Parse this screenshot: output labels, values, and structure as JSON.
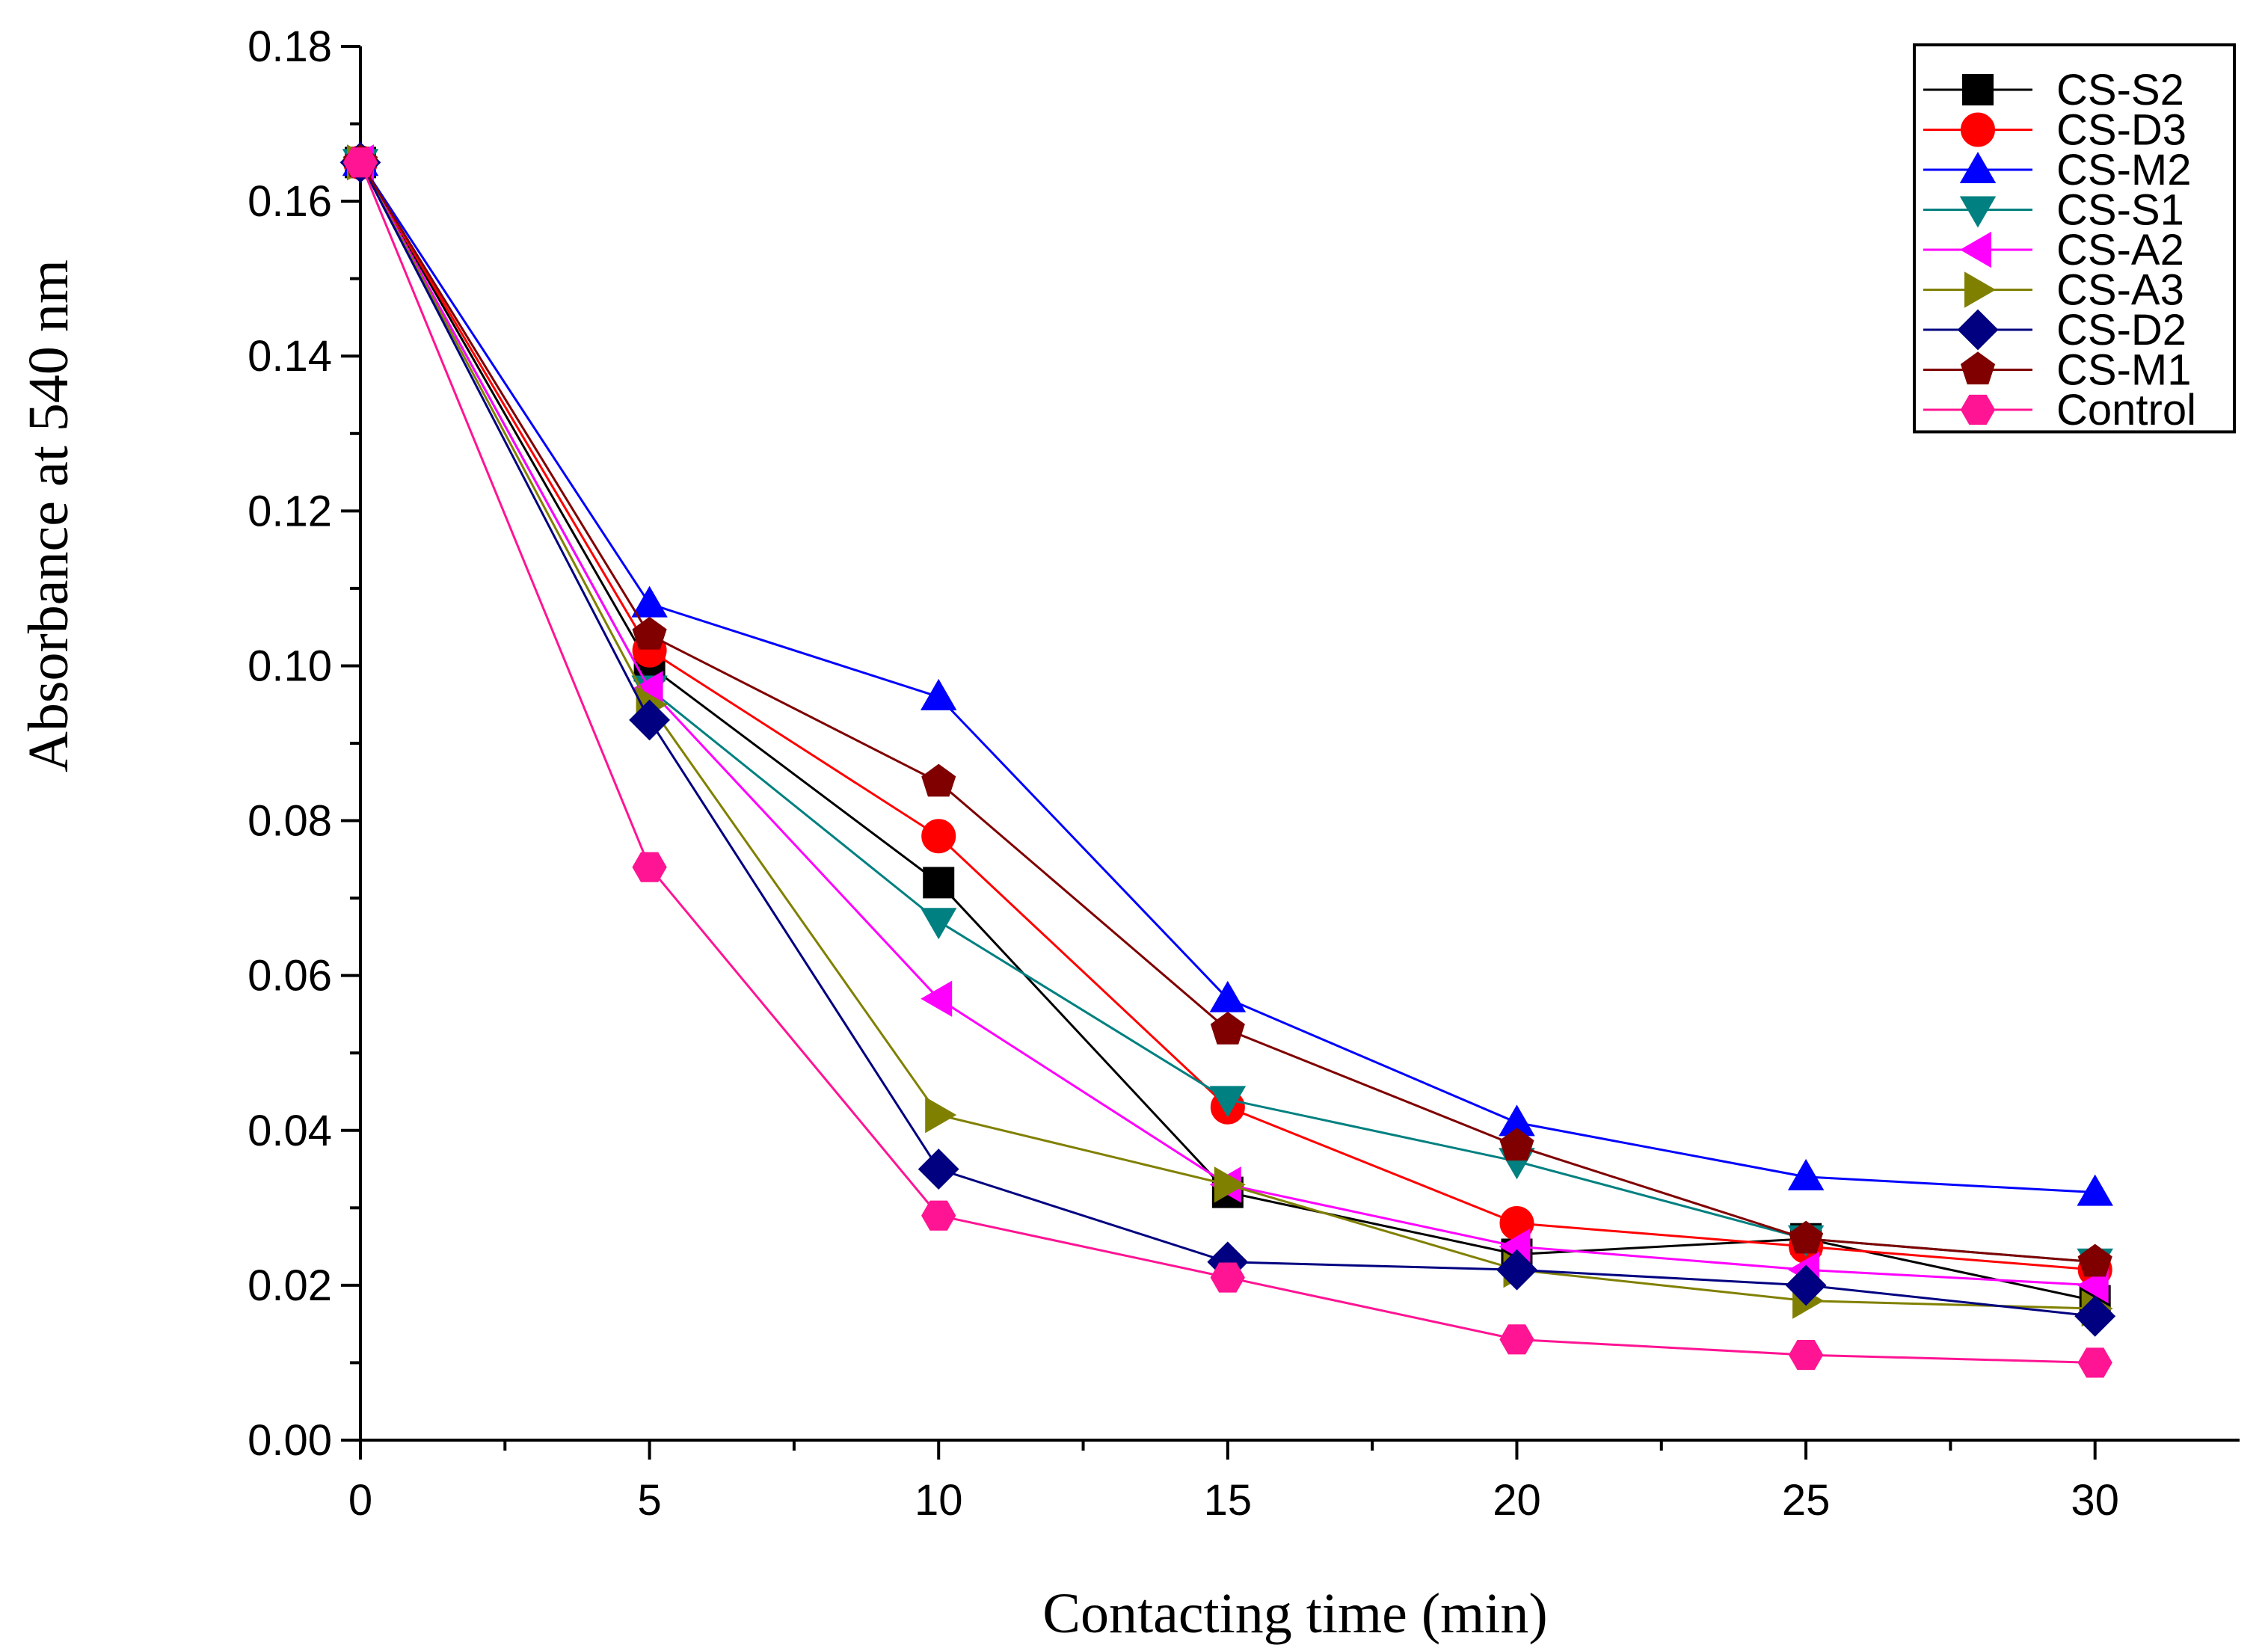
{
  "chart_data": {
    "type": "line",
    "xlabel": "Contacting time (min)",
    "ylabel": "Absorbance at 540 nm",
    "xlim": [
      0,
      32.5
    ],
    "ylim": [
      0,
      0.18
    ],
    "x_ticks": [
      "0",
      "5",
      "10",
      "15",
      "20",
      "25",
      "30"
    ],
    "y_ticks": [
      "0.00",
      "0.02",
      "0.04",
      "0.06",
      "0.08",
      "0.10",
      "0.12",
      "0.14",
      "0.16",
      "0.18"
    ],
    "grid": false,
    "legend_position": "top-right",
    "x": [
      0,
      5,
      10,
      15,
      20,
      25,
      30
    ],
    "series": [
      {
        "name": "CS-S2",
        "color": "#000000",
        "marker": "square",
        "values": [
          0.165,
          0.1,
          0.072,
          0.032,
          0.024,
          0.026,
          0.018
        ]
      },
      {
        "name": "CS-D3",
        "color": "#ff0000",
        "marker": "circle",
        "values": [
          0.165,
          0.102,
          0.078,
          0.043,
          0.028,
          0.025,
          0.022
        ]
      },
      {
        "name": "CS-M2",
        "color": "#0000ff",
        "marker": "triangle-up",
        "values": [
          0.165,
          0.108,
          0.096,
          0.057,
          0.041,
          0.034,
          0.032
        ]
      },
      {
        "name": "CS-S1",
        "color": "#008080",
        "marker": "triangle-down",
        "values": [
          0.165,
          0.097,
          0.067,
          0.044,
          0.036,
          0.026,
          0.023
        ]
      },
      {
        "name": "CS-A2",
        "color": "#ff00ff",
        "marker": "triangle-left",
        "values": [
          0.165,
          0.097,
          0.057,
          0.033,
          0.025,
          0.022,
          0.02
        ]
      },
      {
        "name": "CS-A3",
        "color": "#808000",
        "marker": "triangle-right",
        "values": [
          0.165,
          0.095,
          0.042,
          0.033,
          0.022,
          0.018,
          0.017
        ]
      },
      {
        "name": "CS-D2",
        "color": "#000080",
        "marker": "diamond",
        "values": [
          0.165,
          0.093,
          0.035,
          0.023,
          0.022,
          0.02,
          0.016
        ]
      },
      {
        "name": "CS-M1",
        "color": "#800000",
        "marker": "pentagon",
        "values": [
          0.165,
          0.104,
          0.085,
          0.053,
          0.038,
          0.026,
          0.023
        ]
      },
      {
        "name": "Control",
        "color": "#ff1493",
        "marker": "hexagon",
        "values": [
          0.165,
          0.074,
          0.029,
          0.021,
          0.013,
          0.011,
          0.01
        ]
      }
    ]
  }
}
